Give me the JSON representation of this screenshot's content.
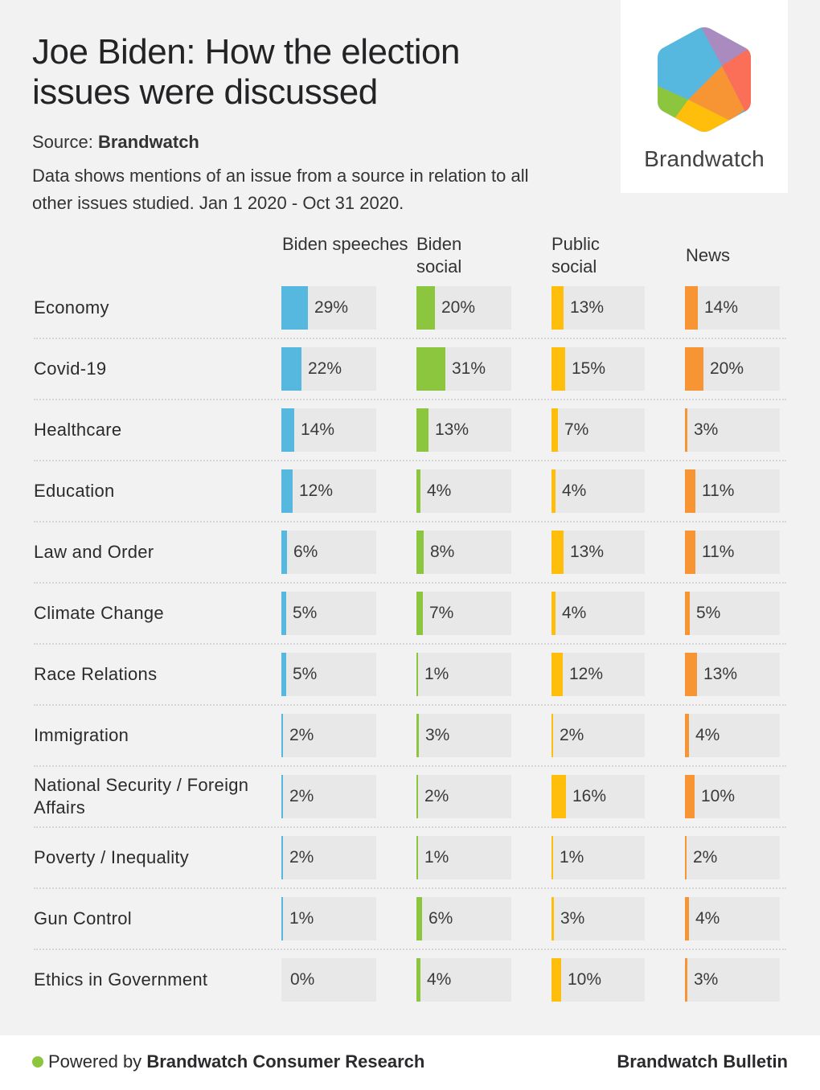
{
  "title": "Joe Biden: How the election issues were discussed",
  "source_label": "Source:",
  "source_name": "Brandwatch",
  "description": "Data shows mentions of an issue from a source in relation to all other issues studied. Jan 1 2020 - Oct 31 2020.",
  "logo": {
    "text": "Brandwatch",
    "icon": "brandwatch-hexagon-logo"
  },
  "colors": {
    "biden_speeches": "#56b8de",
    "biden_social": "#8cc63f",
    "public_social": "#ffbe0b",
    "news": "#f79433"
  },
  "footer": {
    "powered_prefix": "Powered by",
    "powered_name": "Brandwatch Consumer Research",
    "right": "Brandwatch Bulletin"
  },
  "chart_data": {
    "type": "table",
    "title": "Joe Biden: How the election issues were discussed",
    "unit": "%",
    "columns": [
      "Biden speeches",
      "Biden social",
      "Public social",
      "News"
    ],
    "categories": [
      "Economy",
      "Covid-19",
      "Healthcare",
      "Education",
      "Law and Order",
      "Climate Change",
      "Race Relations",
      "Immigration",
      "National Security / Foreign Affairs",
      "Poverty / Inequality",
      "Gun Control",
      "Ethics in Government"
    ],
    "series": [
      {
        "name": "Biden speeches",
        "values": [
          29,
          22,
          14,
          12,
          6,
          5,
          5,
          2,
          2,
          2,
          1,
          0
        ]
      },
      {
        "name": "Biden social",
        "values": [
          20,
          31,
          13,
          4,
          8,
          7,
          1,
          3,
          2,
          1,
          6,
          4
        ]
      },
      {
        "name": "Public social",
        "values": [
          13,
          15,
          7,
          4,
          13,
          4,
          12,
          2,
          16,
          1,
          3,
          10
        ]
      },
      {
        "name": "News",
        "values": [
          14,
          20,
          3,
          11,
          11,
          5,
          13,
          4,
          10,
          2,
          4,
          3
        ]
      }
    ]
  }
}
